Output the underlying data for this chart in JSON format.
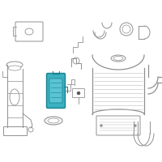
{
  "bg_color": "#ffffff",
  "highlight_color": "#3ab0c0",
  "highlight_color2": "#60c8d8",
  "highlight_color_dark": "#1a8090",
  "line_color": "#909090",
  "dark_color": "#555555",
  "light_line": "#bbbbbb",
  "border_color": "#cccccc"
}
